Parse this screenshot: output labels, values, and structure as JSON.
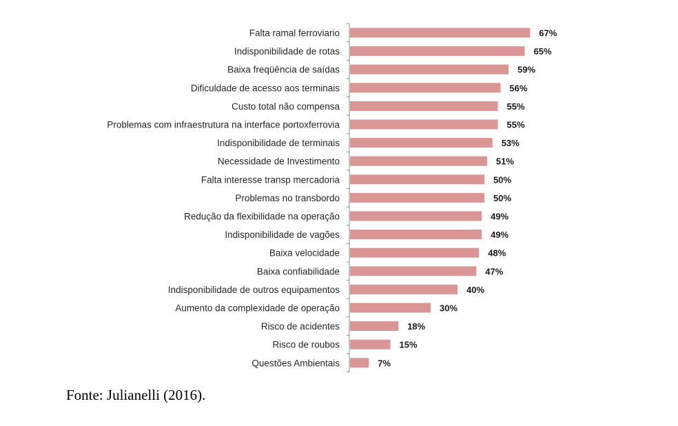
{
  "chart_data": {
    "type": "bar",
    "orientation": "horizontal",
    "categories": [
      "Falta ramal ferroviario",
      "Indisponibilidade de rotas",
      "Baixa freqüência de saídas",
      "Dificuldade de acesso aos terminais",
      "Custo total não compensa",
      "Problemas com infraestrutura na interface portoxferrovia",
      "Indisponibilidade de terminais",
      "Necessidade de Investimento",
      "Falta interesse transp mercadoria",
      "Problemas no transbordo",
      "Redução da flexibilidade na operação",
      "Indisponibilidade de vagões",
      "Baixa velocidade",
      "Baixa confiabilidade",
      "Indisponibilidade de outros equipamentos",
      "Aumento da complexidade de operação",
      "Risco de acidentes",
      "Risco de roubos",
      "Questões Ambientais"
    ],
    "values": [
      67,
      65,
      59,
      56,
      55,
      55,
      53,
      51,
      50,
      50,
      49,
      49,
      48,
      47,
      40,
      30,
      18,
      15,
      7
    ],
    "value_labels": [
      "67%",
      "65%",
      "59%",
      "56%",
      "55%",
      "55%",
      "53%",
      "51%",
      "50%",
      "50%",
      "49%",
      "49%",
      "48%",
      "47%",
      "40%",
      "30%",
      "18%",
      "15%",
      "7%"
    ],
    "unit": "%",
    "xlim": [
      0,
      100
    ],
    "grid": false,
    "legend": "none",
    "bar_color": "#d99694"
  },
  "caption": {
    "source": "Fonte: Julianelli (2016)."
  }
}
